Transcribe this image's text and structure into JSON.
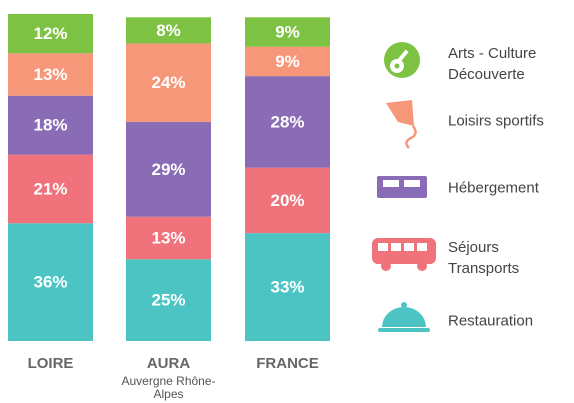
{
  "chart_data": {
    "type": "stacked_bar",
    "categories": [
      "LOIRE",
      "AURA",
      "FRANCE"
    ],
    "category_subtitles": [
      null,
      "Auvergne Rhône-Alpes",
      null
    ],
    "ylim": [
      0,
      100
    ],
    "series": [
      {
        "name": "Restauration",
        "color": "#4cc4c4",
        "values": [
          36,
          25,
          33
        ],
        "value_labels": [
          "36%",
          "25%",
          "33%"
        ]
      },
      {
        "name": "Séjours Transports",
        "color": "#f0727a",
        "values": [
          21,
          13,
          20
        ],
        "value_labels": [
          "21%",
          "13%",
          "20%"
        ]
      },
      {
        "name": "Hébergement",
        "color": "#8a6bb5",
        "values": [
          18,
          29,
          28
        ],
        "value_labels": [
          "18%",
          "29%",
          "28%"
        ]
      },
      {
        "name": "Loisirs sportifs",
        "color": "#f7977a",
        "values": [
          13,
          24,
          9
        ],
        "value_labels": [
          "13%",
          "24%",
          "9%"
        ]
      },
      {
        "name": "Arts - Culture Découverte",
        "color": "#7dc242",
        "values": [
          12,
          8,
          9
        ],
        "value_labels": [
          "12%",
          "8%",
          "9%"
        ]
      }
    ]
  }
}
